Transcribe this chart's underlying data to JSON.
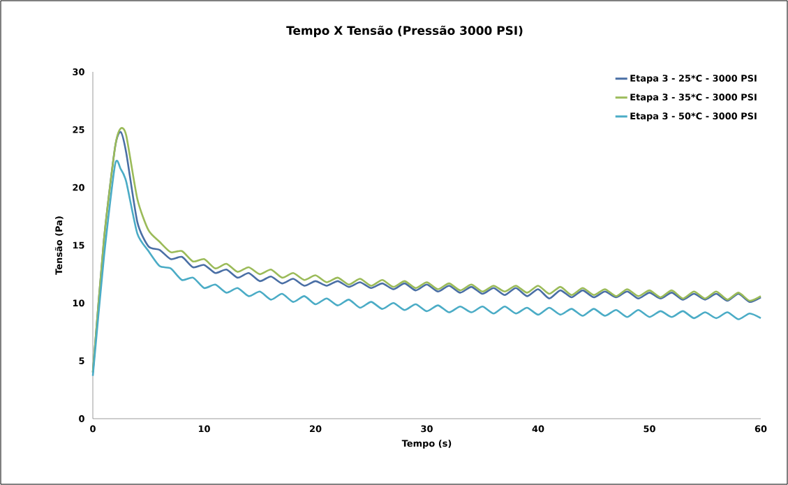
{
  "chart_data": {
    "type": "line",
    "title": "Tempo X Tensão (Pressão 3000 PSI)",
    "xlabel": "Tempo (s)",
    "ylabel": "Tensão (Pa)",
    "x": [
      0,
      1,
      2,
      2.5,
      3,
      4,
      5,
      6,
      7,
      8,
      9,
      10,
      11,
      12,
      13,
      14,
      15,
      16,
      17,
      18,
      19,
      20,
      21,
      22,
      23,
      24,
      25,
      26,
      27,
      28,
      29,
      30,
      31,
      32,
      33,
      34,
      35,
      36,
      37,
      38,
      39,
      40,
      41,
      42,
      43,
      44,
      45,
      46,
      47,
      48,
      49,
      50,
      51,
      52,
      53,
      54,
      55,
      56,
      57,
      58,
      59,
      60
    ],
    "series": [
      {
        "name": "Etapa 3 - 25*C - 3000 PSI",
        "color": "#4a6fa5",
        "values": [
          4.0,
          15.5,
          23.5,
          24.8,
          23,
          17,
          14.9,
          14.6,
          13.8,
          14.0,
          13.1,
          13.3,
          12.6,
          12.9,
          12.2,
          12.6,
          11.9,
          12.3,
          11.7,
          12.1,
          11.5,
          11.9,
          11.5,
          11.9,
          11.4,
          11.8,
          11.3,
          11.7,
          11.2,
          11.7,
          11.1,
          11.6,
          11.0,
          11.5,
          10.9,
          11.4,
          10.8,
          11.3,
          10.7,
          11.3,
          10.6,
          11.2,
          10.4,
          11.1,
          10.5,
          11.1,
          10.5,
          11.0,
          10.5,
          11.0,
          10.4,
          10.9,
          10.4,
          10.9,
          10.3,
          10.8,
          10.3,
          10.8,
          10.2,
          10.8,
          10.1,
          10.5
        ]
      },
      {
        "name": "Etapa 3 - 35*C - 3000 PSI",
        "color": "#9bbb59",
        "values": [
          4.0,
          15.5,
          23.5,
          25.1,
          24.5,
          19,
          16.3,
          15.3,
          14.4,
          14.5,
          13.6,
          13.8,
          13.0,
          13.4,
          12.7,
          13.1,
          12.5,
          12.9,
          12.2,
          12.6,
          12.0,
          12.4,
          11.8,
          12.2,
          11.6,
          12.1,
          11.5,
          12.0,
          11.4,
          11.9,
          11.3,
          11.8,
          11.2,
          11.7,
          11.1,
          11.6,
          11.0,
          11.5,
          11.0,
          11.5,
          10.9,
          11.5,
          10.8,
          11.4,
          10.7,
          11.3,
          10.7,
          11.2,
          10.6,
          11.2,
          10.6,
          11.1,
          10.5,
          11.1,
          10.4,
          11.0,
          10.4,
          11.0,
          10.3,
          10.9,
          10.2,
          10.6
        ]
      },
      {
        "name": "Etapa 3 - 50*C - 3000 PSI",
        "color": "#4bacc6",
        "values": [
          3.7,
          14,
          22.0,
          21.6,
          20.5,
          16,
          14.5,
          13.2,
          13.0,
          12.0,
          12.2,
          11.3,
          11.6,
          10.9,
          11.3,
          10.6,
          11.0,
          10.3,
          10.8,
          10.1,
          10.6,
          9.9,
          10.4,
          9.8,
          10.3,
          9.6,
          10.1,
          9.5,
          10.0,
          9.4,
          9.9,
          9.3,
          9.8,
          9.2,
          9.7,
          9.2,
          9.7,
          9.1,
          9.7,
          9.1,
          9.6,
          9.0,
          9.6,
          9.0,
          9.5,
          8.9,
          9.5,
          8.9,
          9.4,
          8.8,
          9.4,
          8.8,
          9.3,
          8.8,
          9.3,
          8.7,
          9.2,
          8.7,
          9.2,
          8.6,
          9.1,
          8.7
        ]
      }
    ],
    "xlim": [
      0,
      60
    ],
    "xticks": [
      0,
      10,
      20,
      30,
      40,
      50,
      60
    ],
    "ylim": [
      0,
      30
    ],
    "yticks": [
      0,
      5,
      10,
      15,
      20,
      25,
      30
    ],
    "grid": false,
    "legend": "top right",
    "marker": "none",
    "line_style": "solid"
  }
}
